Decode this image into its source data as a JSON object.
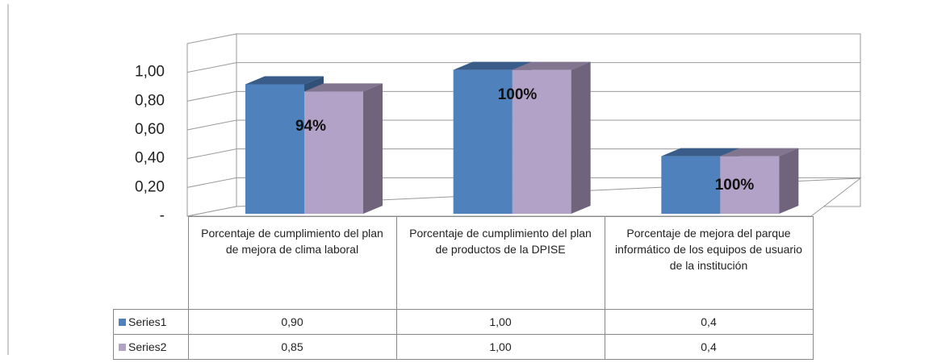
{
  "chart_data": {
    "type": "bar3d",
    "categories": [
      "Porcentaje de cumplimiento del plan de mejora de clima laboral",
      "Porcentaje de cumplimiento del plan de productos de la DPISE",
      "Porcentaje de mejora del parque informático de los equipos de usuario de la institución"
    ],
    "series": [
      {
        "name": "Series1",
        "color": "#4f81bd",
        "values": [
          0.9,
          1.0,
          0.4
        ],
        "value_labels": [
          "0,90",
          "1,00",
          "0,4"
        ]
      },
      {
        "name": "Series2",
        "color": "#b3a2c7",
        "values": [
          0.85,
          1.0,
          0.4
        ],
        "value_labels": [
          "0,85",
          "1,00",
          "0,4"
        ]
      }
    ],
    "annotations": [
      "94%",
      "100%",
      "100%"
    ],
    "ylim": [
      0,
      1.2
    ],
    "yticks": [
      {
        "value": 0,
        "label": "-"
      },
      {
        "value": 0.2,
        "label": "0,20"
      },
      {
        "value": 0.4,
        "label": "0,40"
      },
      {
        "value": 0.6,
        "label": "0,60"
      },
      {
        "value": 0.8,
        "label": "0,80"
      },
      {
        "value": 1.0,
        "label": "1,00"
      }
    ],
    "grid": true
  }
}
